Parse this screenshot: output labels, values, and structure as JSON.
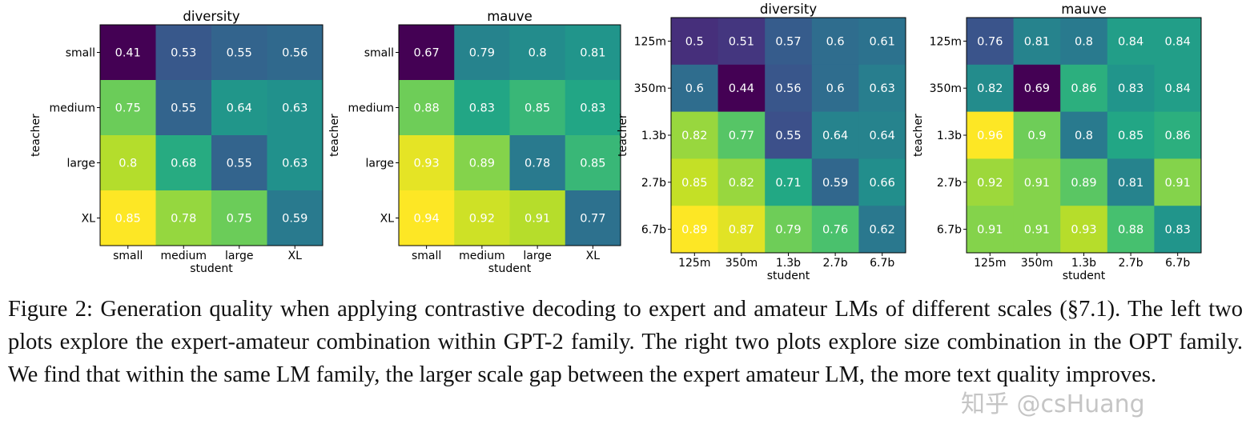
{
  "chart_data": [
    {
      "type": "heatmap",
      "title": "diversity",
      "xlabel": "student",
      "ylabel": "teacher",
      "x": [
        "small",
        "medium",
        "large",
        "XL"
      ],
      "y": [
        "small",
        "medium",
        "large",
        "XL"
      ],
      "values": [
        [
          0.41,
          0.53,
          0.55,
          0.56
        ],
        [
          0.75,
          0.55,
          0.64,
          0.63
        ],
        [
          0.8,
          0.68,
          0.55,
          0.63
        ],
        [
          0.85,
          0.78,
          0.75,
          0.59
        ]
      ],
      "colormap": "viridis"
    },
    {
      "type": "heatmap",
      "title": "mauve",
      "xlabel": "student",
      "ylabel": "teacher",
      "x": [
        "small",
        "medium",
        "large",
        "XL"
      ],
      "y": [
        "small",
        "medium",
        "large",
        "XL"
      ],
      "values": [
        [
          0.67,
          0.79,
          0.8,
          0.81
        ],
        [
          0.88,
          0.83,
          0.85,
          0.83
        ],
        [
          0.93,
          0.89,
          0.78,
          0.85
        ],
        [
          0.94,
          0.92,
          0.91,
          0.77
        ]
      ],
      "colormap": "viridis"
    },
    {
      "type": "heatmap",
      "title": "diversity",
      "xlabel": "student",
      "ylabel": "teacher",
      "x": [
        "125m",
        "350m",
        "1.3b",
        "2.7b",
        "6.7b"
      ],
      "y": [
        "125m",
        "350m",
        "1.3b",
        "2.7b",
        "6.7b"
      ],
      "values": [
        [
          0.5,
          0.51,
          0.57,
          0.6,
          0.61
        ],
        [
          0.6,
          0.44,
          0.56,
          0.6,
          0.63
        ],
        [
          0.82,
          0.77,
          0.55,
          0.64,
          0.64
        ],
        [
          0.85,
          0.82,
          0.71,
          0.59,
          0.66
        ],
        [
          0.89,
          0.87,
          0.79,
          0.76,
          0.62
        ]
      ],
      "colormap": "viridis"
    },
    {
      "type": "heatmap",
      "title": "mauve",
      "xlabel": "student",
      "ylabel": "teacher",
      "x": [
        "125m",
        "350m",
        "1.3b",
        "2.7b",
        "6.7b"
      ],
      "y": [
        "125m",
        "350m",
        "1.3b",
        "2.7b",
        "6.7b"
      ],
      "values": [
        [
          0.76,
          0.81,
          0.8,
          0.84,
          0.84
        ],
        [
          0.82,
          0.69,
          0.86,
          0.83,
          0.84
        ],
        [
          0.96,
          0.9,
          0.8,
          0.85,
          0.86
        ],
        [
          0.92,
          0.91,
          0.89,
          0.81,
          0.91
        ],
        [
          0.91,
          0.91,
          0.93,
          0.88,
          0.83
        ]
      ],
      "colormap": "viridis"
    }
  ],
  "caption": "Figure 2:  Generation quality when applying contrastive decoding to expert and amateur LMs of different scales (§7.1). The left two plots explore the expert-amateur combination within GPT-2 family. The right two plots explore size combination in the OPT family.  We find that within the same LM family, the larger scale gap between the expert amateur LM, the more text quality improves.",
  "watermark": "知乎 @csHuang"
}
